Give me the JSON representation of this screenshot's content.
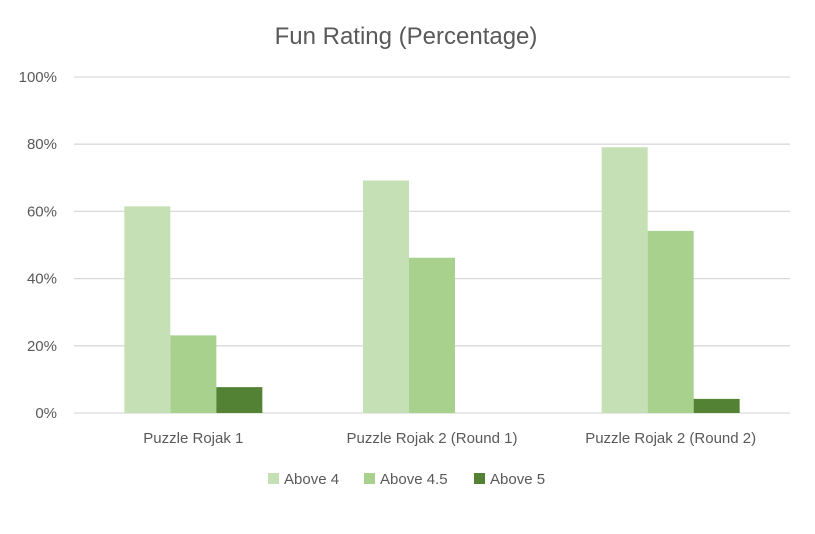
{
  "chart_data": {
    "type": "bar",
    "title": "Fun Rating (Percentage)",
    "xlabel": "",
    "ylabel": "",
    "ylim": [
      0,
      100
    ],
    "yticks": [
      "0%",
      "20%",
      "40%",
      "60%",
      "80%",
      "100%"
    ],
    "yticks_values": [
      0,
      20,
      40,
      60,
      80,
      100
    ],
    "categories": [
      "Puzzle Rojak 1",
      "Puzzle Rojak 2 (Round 1)",
      "Puzzle Rojak 2 (Round 2)"
    ],
    "series": [
      {
        "name": "Above 4",
        "values": [
          61.5,
          69.2,
          79.1
        ],
        "color": "#c5e0b4"
      },
      {
        "name": "Above 4.5",
        "values": [
          23.1,
          46.2,
          54.2
        ],
        "color": "#a9d18e"
      },
      {
        "name": "Above 5",
        "values": [
          7.7,
          0,
          4.2
        ],
        "color": "#548235"
      }
    ],
    "grid": true,
    "legend_position": "bottom",
    "gridline_color": "#d9d9d9"
  }
}
